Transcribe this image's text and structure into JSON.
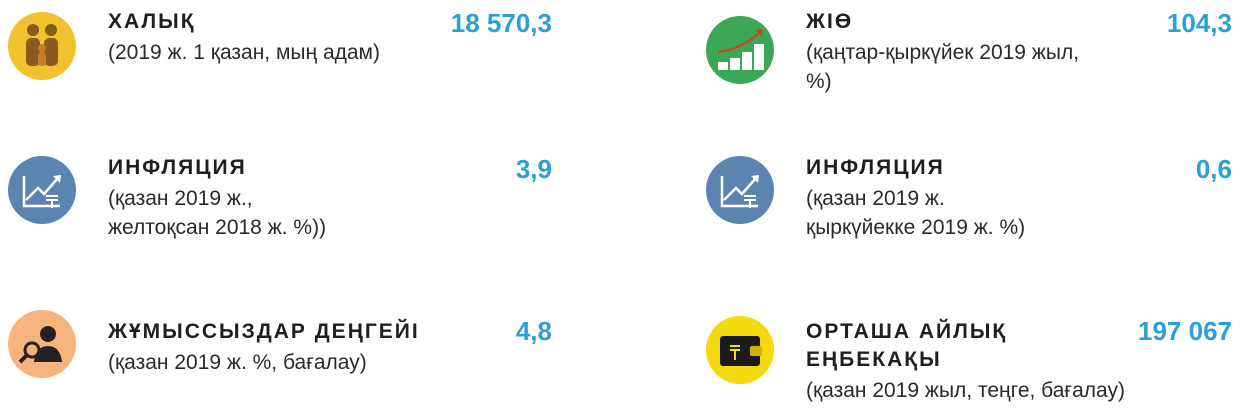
{
  "items": [
    {
      "title": [
        "ХАЛЫҚ"
      ],
      "subtitle": [
        "(2019 ж. 1 қазан, мың адам)"
      ],
      "value": "18 570,3"
    },
    {
      "title": [
        "ЖІӨ"
      ],
      "subtitle": [
        "(қаңтар-қыркүйек 2019 жыл,",
        "%)"
      ],
      "value": "104,3"
    },
    {
      "title": [
        "ИНФЛЯЦИЯ"
      ],
      "subtitle": [
        "(қазан 2019 ж.,",
        "желтоқсан 2018 ж. %))"
      ],
      "value": "3,9"
    },
    {
      "title": [
        "ИНФЛЯЦИЯ"
      ],
      "subtitle": [
        "(қазан 2019 ж.",
        "қыркүйекке 2019 ж. %)"
      ],
      "value": "0,6"
    },
    {
      "title": [
        "ЖҰМЫССЫЗДАР ДЕҢГЕЙІ"
      ],
      "subtitle": [
        "(қазан 2019 ж. %, бағалау)"
      ],
      "value": "4,8"
    },
    {
      "title": [
        "ОРТАША АЙЛЫҚ",
        "ЕҢБЕКАҚЫ"
      ],
      "subtitle": [
        "(қазан 2019 жыл, теңге, бағалау)"
      ],
      "value": "197 067"
    }
  ]
}
